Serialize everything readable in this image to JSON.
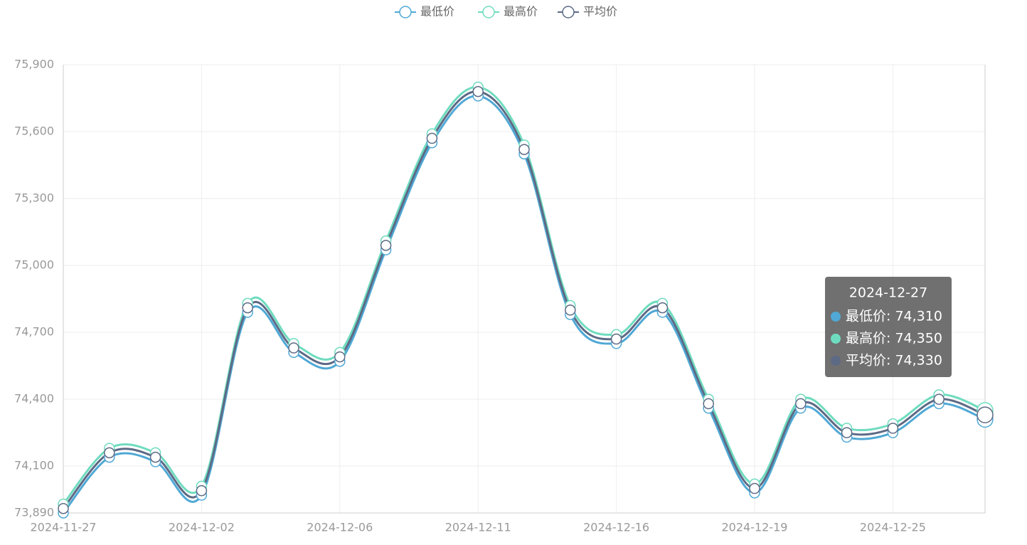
{
  "chart_data": {
    "type": "line",
    "categories": [
      "2024-11-27",
      null,
      null,
      "2024-12-02",
      null,
      null,
      "2024-12-06",
      null,
      null,
      "2024-12-11",
      null,
      null,
      "2024-12-16",
      null,
      null,
      "2024-12-19",
      null,
      null,
      "2024-12-25",
      null,
      null
    ],
    "series": [
      {
        "name": "最低价",
        "color": "#4fa8d5",
        "values": [
          73890,
          74140,
          74120,
          73970,
          74790,
          74610,
          74570,
          75070,
          75550,
          75760,
          75500,
          74780,
          74650,
          74790,
          74360,
          73980,
          74360,
          74230,
          74250,
          74380,
          74310
        ]
      },
      {
        "name": "最高价",
        "color": "#6fdcbf",
        "values": [
          73930,
          74180,
          74160,
          74010,
          74830,
          74650,
          74610,
          75110,
          75590,
          75800,
          75540,
          74820,
          74690,
          74830,
          74400,
          74020,
          74400,
          74270,
          74290,
          74420,
          74350
        ]
      },
      {
        "name": "平均价",
        "color": "#5d6a85",
        "values": [
          73910,
          74160,
          74140,
          73990,
          74810,
          74630,
          74590,
          75090,
          75570,
          75780,
          75520,
          74800,
          74670,
          74810,
          74380,
          74000,
          74380,
          74250,
          74270,
          74400,
          74330
        ]
      }
    ],
    "ylim": [
      73890,
      75900
    ],
    "yticks": [
      {
        "value": 73890,
        "label": "73,890"
      },
      {
        "value": 74100,
        "label": "74,100"
      },
      {
        "value": 74400,
        "label": "74,400"
      },
      {
        "value": 74700,
        "label": "74,700"
      },
      {
        "value": 75000,
        "label": "75,000"
      },
      {
        "value": 75300,
        "label": "75,300"
      },
      {
        "value": 75600,
        "label": "75,600"
      },
      {
        "value": 75900,
        "label": "75,900"
      }
    ],
    "grid": true,
    "smooth": true,
    "legend": "top",
    "tooltip": {
      "title": "2024-12-27",
      "rows": [
        "最低价: 74,310",
        "最高价: 74,350",
        "平均价: 74,330"
      ]
    }
  }
}
